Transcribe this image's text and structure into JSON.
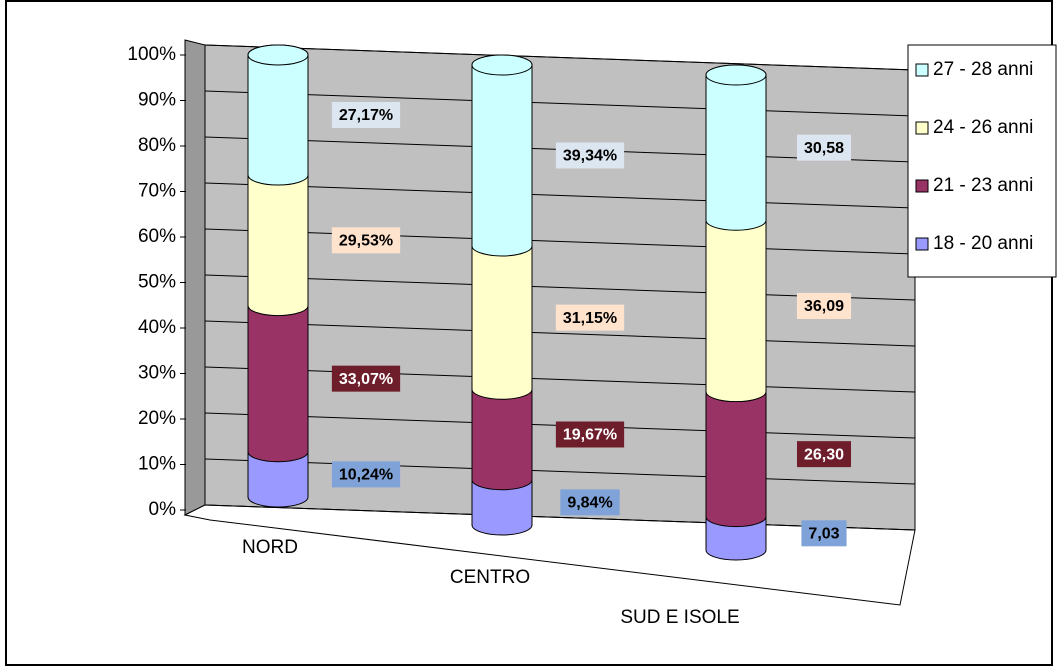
{
  "chart_data": {
    "type": "bar",
    "stacked": true,
    "shape": "cylinder",
    "categories": [
      "NORD",
      "CENTRO",
      "SUD E ISOLE"
    ],
    "series": [
      {
        "name": "18 - 20 anni",
        "color": "#9999ff",
        "label_color": "#7fa3d8",
        "label_text_color": "#000000",
        "values": [
          10.24,
          9.84,
          7.03
        ],
        "value_labels": [
          "10,24%",
          "9,84%",
          "7,03"
        ]
      },
      {
        "name": "21 - 23 anni",
        "color": "#993366",
        "label_color": "#6e1e2a",
        "label_text_color": "#ffffff",
        "values": [
          33.07,
          19.67,
          26.3
        ],
        "value_labels": [
          "33,07%",
          "19,67%",
          "26,30"
        ]
      },
      {
        "name": "24 - 26 anni",
        "color": "#ffffcc",
        "label_color": "#ffe3cc",
        "label_text_color": "#000000",
        "values": [
          29.53,
          31.15,
          36.09
        ],
        "value_labels": [
          "29,53%",
          "31,15%",
          "36,09"
        ]
      },
      {
        "name": "27 - 28 anni",
        "color": "#ccffff",
        "label_color": "#dce6f0",
        "label_text_color": "#000000",
        "values": [
          27.17,
          39.34,
          30.58
        ],
        "value_labels": [
          "27,17%",
          "39,34%",
          "30,58"
        ]
      }
    ],
    "ylim": [
      0,
      100
    ],
    "yticks": [
      {
        "value": 0,
        "label": "0%"
      },
      {
        "value": 10,
        "label": "10%"
      },
      {
        "value": 20,
        "label": "20%"
      },
      {
        "value": 30,
        "label": "30%"
      },
      {
        "value": 40,
        "label": "40%"
      },
      {
        "value": 50,
        "label": "50%"
      },
      {
        "value": 60,
        "label": "60%"
      },
      {
        "value": 70,
        "label": "70%"
      },
      {
        "value": 80,
        "label": "80%"
      },
      {
        "value": 90,
        "label": "90%"
      },
      {
        "value": 100,
        "label": "100%"
      }
    ],
    "grid": true,
    "legend": "right",
    "wall_color": "#c0c0c0"
  }
}
